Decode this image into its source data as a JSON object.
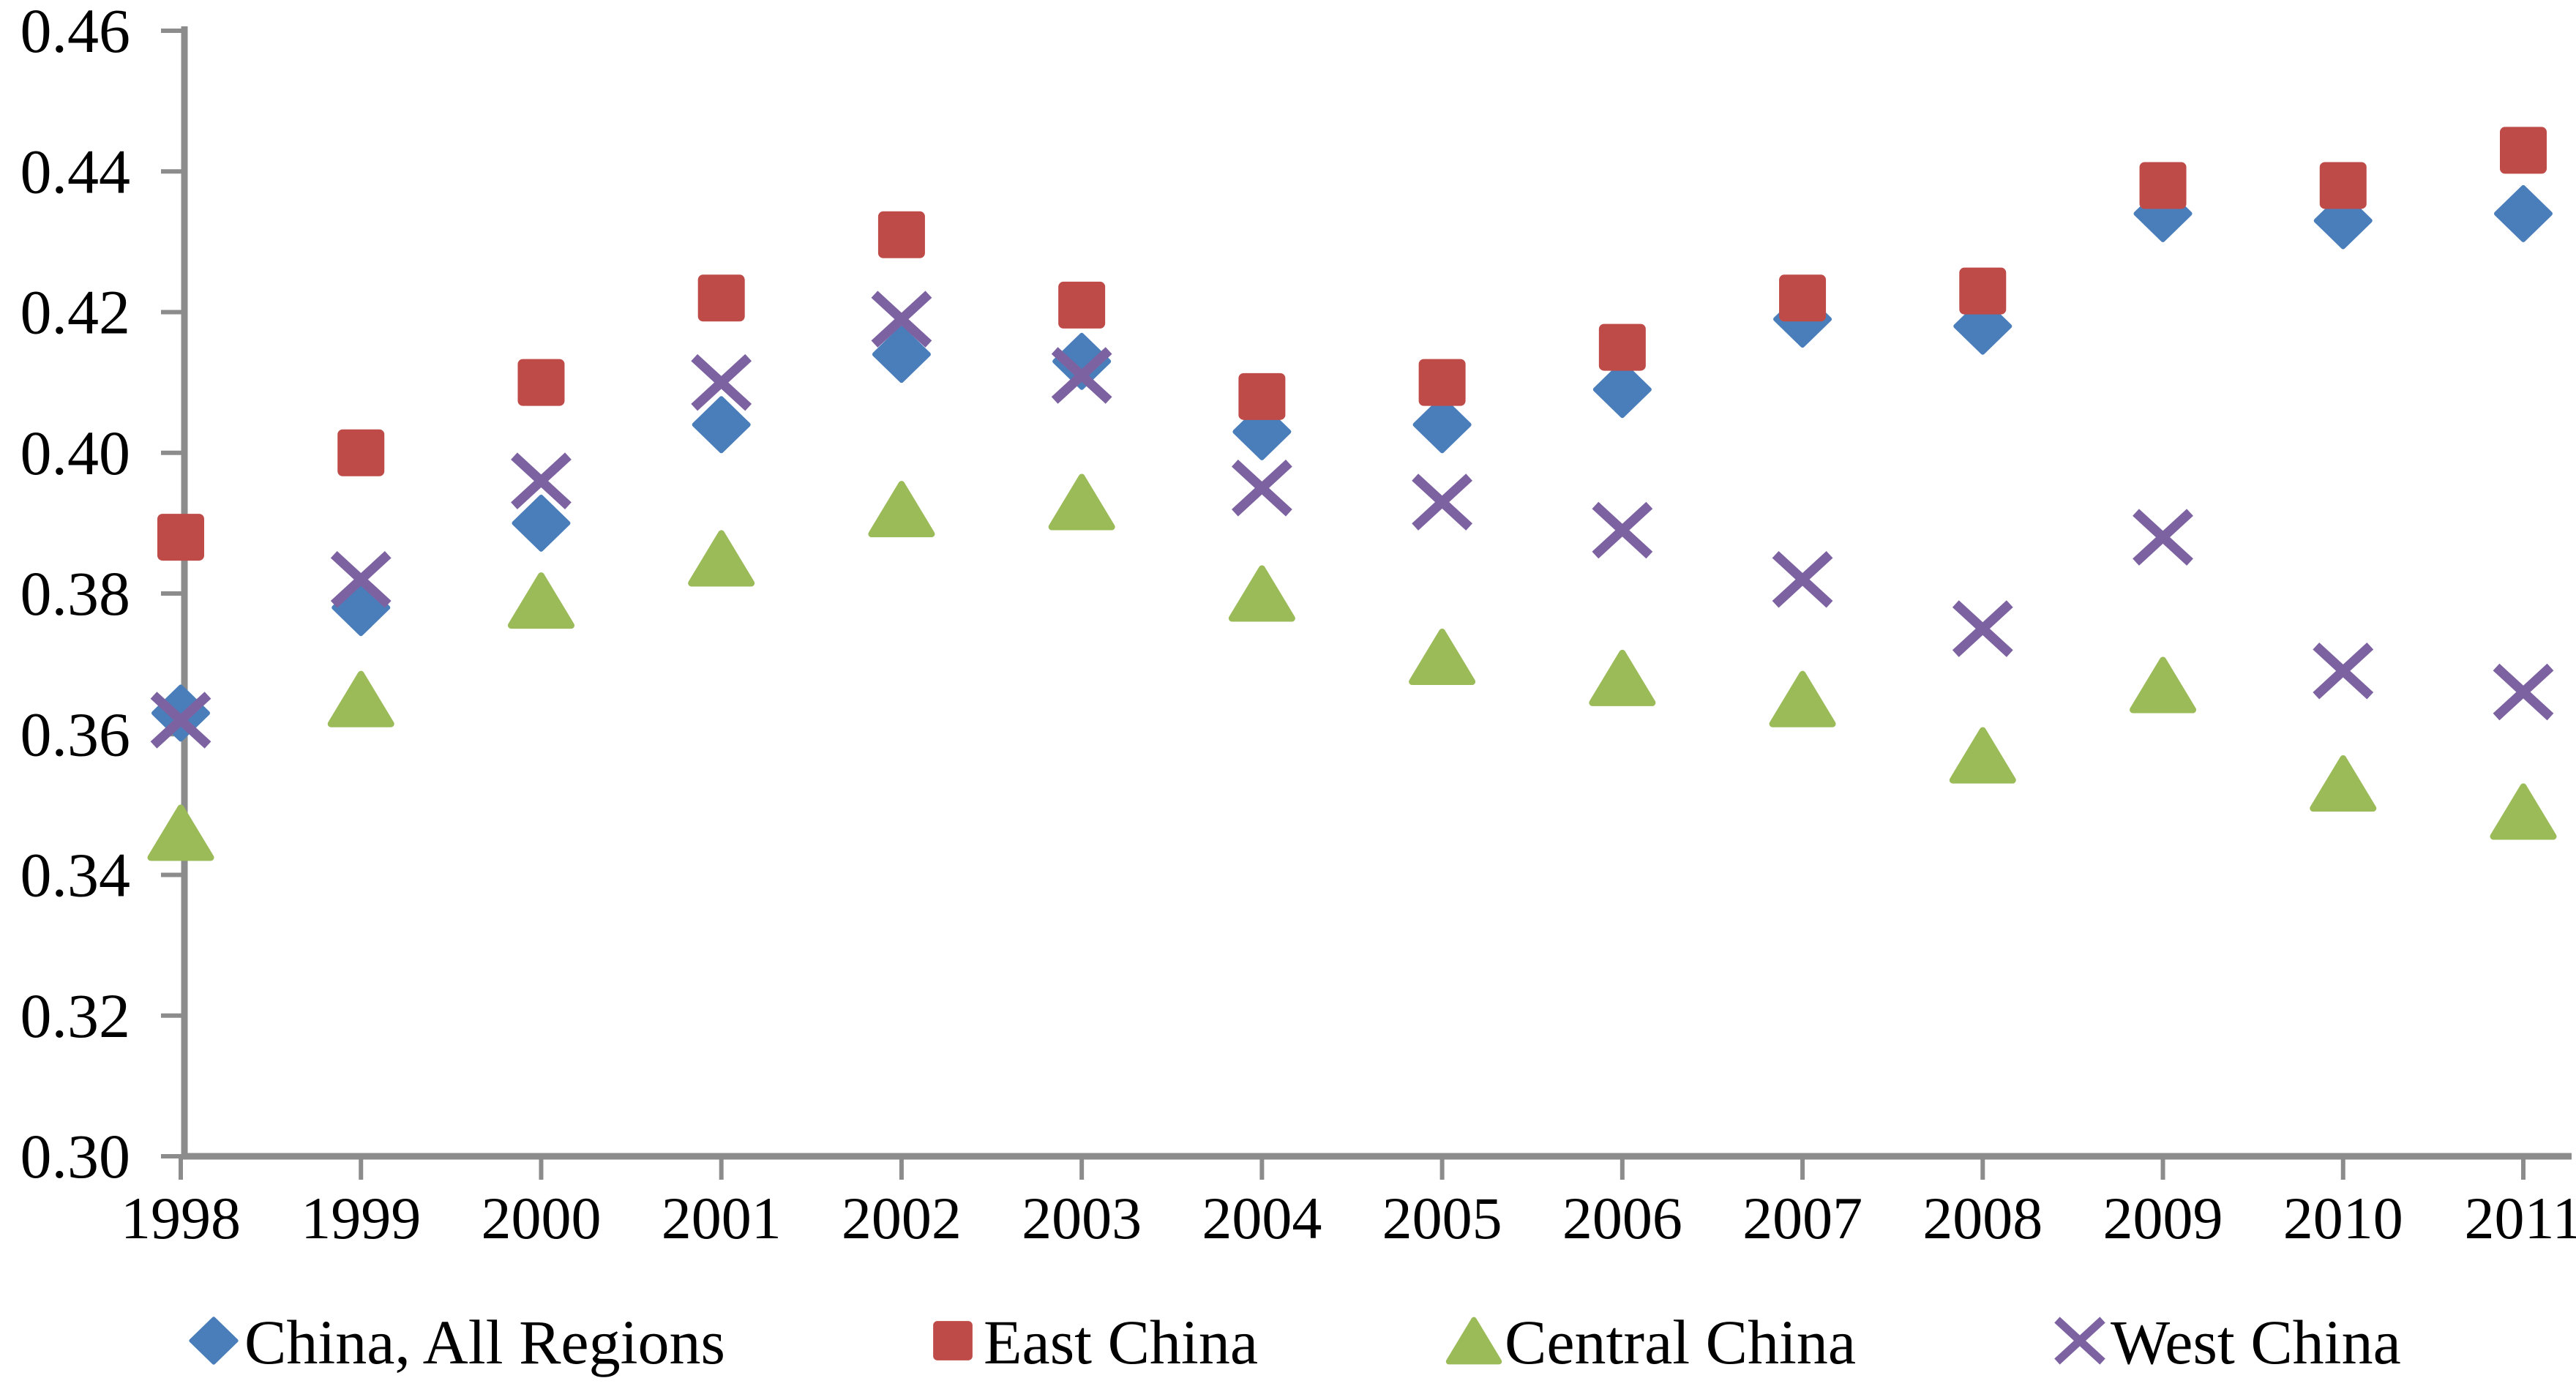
{
  "chart_data": {
    "type": "scatter",
    "title": "",
    "xlabel": "",
    "ylabel": "",
    "x_categories": [
      "1998",
      "1999",
      "2000",
      "2001",
      "2002",
      "2003",
      "2004",
      "2005",
      "2006",
      "2007",
      "2008",
      "2009",
      "2010",
      "2011"
    ],
    "ylim": [
      0.3,
      0.46
    ],
    "ytick_step": 0.02,
    "ytick_labels": [
      "0.46",
      "0.44",
      "0.42",
      "0.40",
      "0.38",
      "0.36",
      "0.34",
      "0.32",
      "0.30"
    ],
    "grid": false,
    "legend_position": "bottom",
    "axis_color": "#8c8c8c",
    "text_color": "#000000",
    "background_color": "#ffffff",
    "series": [
      {
        "name": "China, All Regions",
        "marker": "diamond",
        "color": "#4a7ebb",
        "values": [
          0.363,
          0.378,
          0.39,
          0.404,
          0.414,
          0.413,
          0.403,
          0.404,
          0.409,
          0.419,
          0.418,
          0.434,
          0.433,
          0.434
        ]
      },
      {
        "name": "East China",
        "marker": "square",
        "color": "#be4b48",
        "values": [
          0.388,
          0.4,
          0.41,
          0.422,
          0.431,
          0.421,
          0.408,
          0.41,
          0.415,
          0.422,
          0.423,
          0.438,
          0.438,
          0.443
        ]
      },
      {
        "name": "Central China",
        "marker": "triangle",
        "color": "#9bbb59",
        "values": [
          0.346,
          0.365,
          0.379,
          0.385,
          0.392,
          0.393,
          0.38,
          0.371,
          0.368,
          0.365,
          0.357,
          0.367,
          0.353,
          0.349
        ]
      },
      {
        "name": "West China",
        "marker": "x",
        "color": "#7d62a2",
        "values": [
          0.362,
          0.382,
          0.396,
          0.41,
          0.419,
          0.411,
          0.395,
          0.393,
          0.389,
          0.382,
          0.375,
          0.388,
          0.369,
          0.366
        ]
      }
    ]
  }
}
